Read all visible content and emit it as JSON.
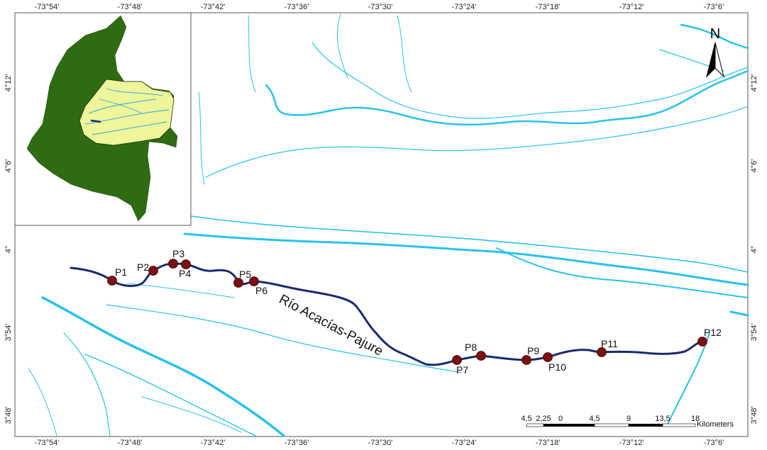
{
  "map": {
    "top_longitude_labels": [
      "-73°54'",
      "-73°48'",
      "-73°42'",
      "-73°36'",
      "-73°30'",
      "-73°24'",
      "-73°18'",
      "-73°12'",
      "-73°6'"
    ],
    "bottom_longitude_labels": [
      "-73°54'",
      "-73°48'",
      "-73°42'",
      "-73°36'",
      "-73°30'",
      "-73°24'",
      "-73°18'",
      "-73°12'",
      "-73°6'"
    ],
    "left_latitude_labels": [
      "4°12'",
      "4°6'",
      "4°",
      "3°54'",
      "3°48'"
    ],
    "right_latitude_labels": [
      "4°12'",
      "4°6'",
      "4°",
      "3°54'",
      "3°48'"
    ],
    "north_arrow_label": "N",
    "river_name": "Río Acacías-Pajure",
    "points": [
      {
        "label": "P1"
      },
      {
        "label": "P2"
      },
      {
        "label": "P3"
      },
      {
        "label": "P4"
      },
      {
        "label": "P5"
      },
      {
        "label": "P6"
      },
      {
        "label": "P7"
      },
      {
        "label": "P8"
      },
      {
        "label": "P9"
      },
      {
        "label": "P10"
      },
      {
        "label": "P11"
      },
      {
        "label": "P12"
      }
    ],
    "scale_bar": {
      "tick_labels": [
        "4,5",
        "2,25",
        "0",
        "4,5",
        "9",
        "13,5",
        "18"
      ],
      "unit": "Kilometers"
    },
    "colors": {
      "main_river": "#1a2a6c",
      "secondary_rivers": "#29c2ea",
      "sample_points": "#7a1010",
      "inset_country": "#2e6b12",
      "inset_basin": "#eef59a",
      "frame": "#555555"
    }
  }
}
